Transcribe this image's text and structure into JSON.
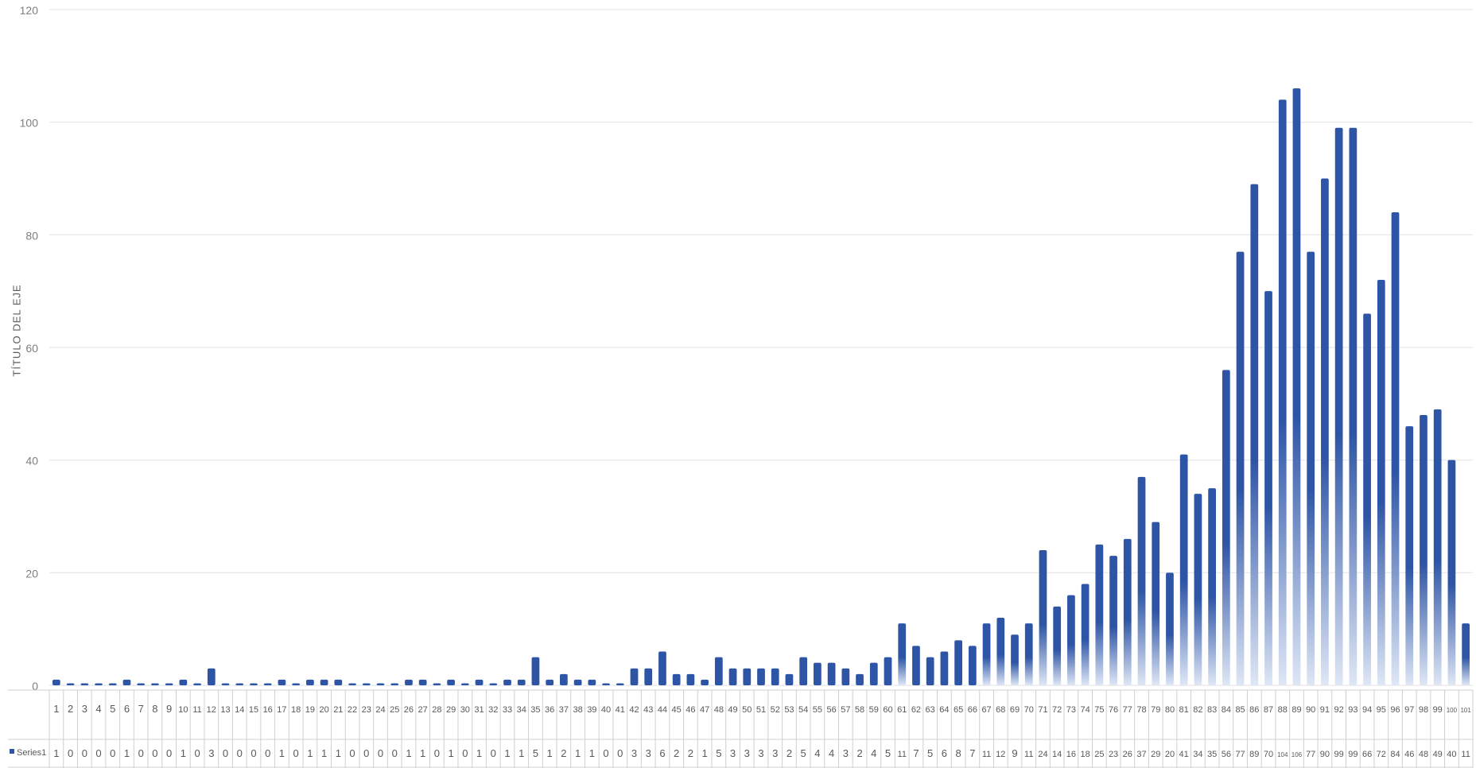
{
  "chart_data": {
    "type": "bar",
    "title": "",
    "xlabel": "",
    "ylabel": "TÍTULO DEL EJE",
    "ylim": [
      0,
      120
    ],
    "yticks": [
      0,
      20,
      40,
      60,
      80,
      100,
      120
    ],
    "grid": true,
    "legend": "data-table-left",
    "bar_color": "#2E55A5",
    "grid_color": "#e6e6e6",
    "categories": [
      "1",
      "2",
      "3",
      "4",
      "5",
      "6",
      "7",
      "8",
      "9",
      "10",
      "11",
      "12",
      "13",
      "14",
      "15",
      "16",
      "17",
      "18",
      "19",
      "20",
      "21",
      "22",
      "23",
      "24",
      "25",
      "26",
      "27",
      "28",
      "29",
      "30",
      "31",
      "32",
      "33",
      "34",
      "35",
      "36",
      "37",
      "38",
      "39",
      "40",
      "41",
      "42",
      "43",
      "44",
      "45",
      "46",
      "47",
      "48",
      "49",
      "50",
      "51",
      "52",
      "53",
      "54",
      "55",
      "56",
      "57",
      "58",
      "59",
      "60",
      "61",
      "62",
      "63",
      "64",
      "65",
      "66",
      "67",
      "68",
      "69",
      "70",
      "71",
      "72",
      "73",
      "74",
      "75",
      "76",
      "77",
      "78",
      "79",
      "80",
      "81",
      "82",
      "83",
      "84",
      "85",
      "86",
      "87",
      "88",
      "89",
      "90",
      "91",
      "92",
      "93",
      "94",
      "95",
      "96",
      "97",
      "98",
      "99",
      "100",
      "101"
    ],
    "series": [
      {
        "name": "Series1",
        "values": [
          1,
          0,
          0,
          0,
          0,
          1,
          0,
          0,
          0,
          1,
          0,
          3,
          0,
          0,
          0,
          0,
          1,
          0,
          1,
          1,
          1,
          0,
          0,
          0,
          0,
          1,
          1,
          0,
          1,
          0,
          1,
          0,
          1,
          1,
          5,
          1,
          2,
          1,
          1,
          0,
          0,
          3,
          3,
          6,
          2,
          2,
          1,
          5,
          3,
          3,
          3,
          3,
          2,
          5,
          4,
          4,
          3,
          2,
          4,
          5,
          11,
          7,
          5,
          6,
          8,
          7,
          11,
          12,
          9,
          11,
          24,
          14,
          16,
          18,
          25,
          23,
          26,
          37,
          29,
          20,
          41,
          34,
          35,
          56,
          77,
          89,
          70,
          104,
          106,
          77,
          90,
          99,
          99,
          66,
          72,
          84,
          46,
          48,
          49,
          40,
          11
        ]
      }
    ]
  }
}
